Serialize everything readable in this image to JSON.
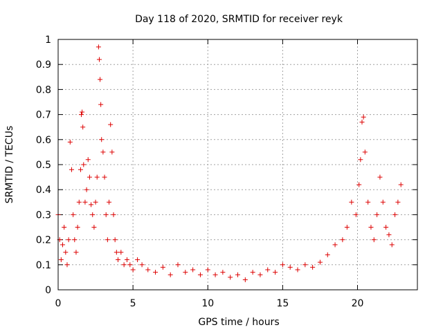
{
  "chart_data": {
    "type": "scatter",
    "title": "Day 118 of 2020, SRMTID for receiver reyk",
    "xlabel": "GPS time / hours",
    "ylabel": "SRMTID / TECUs",
    "xlim": [
      0,
      24
    ],
    "ylim": [
      0,
      1
    ],
    "x_ticks": [
      0,
      5,
      10,
      15,
      20
    ],
    "x_tick_labels": [
      "0",
      "5",
      "10",
      "15",
      "20"
    ],
    "y_ticks": [
      0,
      0.1,
      0.2,
      0.3,
      0.4,
      0.5,
      0.6,
      0.7,
      0.8,
      0.9,
      1
    ],
    "y_tick_labels": [
      "0",
      "0.1",
      "0.2",
      "0.3",
      "0.4",
      "0.5",
      "0.6",
      "0.7",
      "0.8",
      "0.9",
      "1"
    ],
    "grid": true,
    "marker": "+",
    "color": "#dd0000",
    "series": [
      {
        "name": "SRMTID",
        "x": [
          0.0,
          0.1,
          0.2,
          0.3,
          0.4,
          0.5,
          0.6,
          0.7,
          0.8,
          0.9,
          1.0,
          1.1,
          1.2,
          1.3,
          1.4,
          1.5,
          1.55,
          1.6,
          1.65,
          1.7,
          1.8,
          1.9,
          2.0,
          2.1,
          2.2,
          2.3,
          2.4,
          2.5,
          2.6,
          2.7,
          2.75,
          2.8,
          2.85,
          2.9,
          3.0,
          3.1,
          3.2,
          3.3,
          3.4,
          3.5,
          3.6,
          3.7,
          3.8,
          3.9,
          4.0,
          4.2,
          4.4,
          4.6,
          4.8,
          5.0,
          5.3,
          5.6,
          6.0,
          6.5,
          7.0,
          7.5,
          8.0,
          8.5,
          9.0,
          9.5,
          10.0,
          10.5,
          11.0,
          11.5,
          12.0,
          12.5,
          13.0,
          13.5,
          14.0,
          14.5,
          15.0,
          15.5,
          16.0,
          16.5,
          17.0,
          17.5,
          18.0,
          18.5,
          19.0,
          19.3,
          19.6,
          19.9,
          20.1,
          20.2,
          20.3,
          20.4,
          20.5,
          20.7,
          20.9,
          21.1,
          21.3,
          21.5,
          21.7,
          21.9,
          22.1,
          22.3,
          22.5,
          22.7,
          22.9
        ],
        "y": [
          0.3,
          0.2,
          0.12,
          0.18,
          0.25,
          0.15,
          0.1,
          0.2,
          0.59,
          0.48,
          0.3,
          0.2,
          0.15,
          0.25,
          0.35,
          0.48,
          0.7,
          0.71,
          0.65,
          0.5,
          0.35,
          0.4,
          0.52,
          0.45,
          0.34,
          0.3,
          0.25,
          0.35,
          0.45,
          0.97,
          0.92,
          0.84,
          0.74,
          0.6,
          0.55,
          0.45,
          0.3,
          0.2,
          0.35,
          0.66,
          0.55,
          0.3,
          0.2,
          0.15,
          0.12,
          0.15,
          0.1,
          0.12,
          0.1,
          0.08,
          0.12,
          0.1,
          0.08,
          0.07,
          0.09,
          0.06,
          0.1,
          0.07,
          0.08,
          0.06,
          0.08,
          0.06,
          0.07,
          0.05,
          0.06,
          0.04,
          0.07,
          0.06,
          0.08,
          0.07,
          0.1,
          0.09,
          0.08,
          0.1,
          0.09,
          0.11,
          0.14,
          0.18,
          0.2,
          0.25,
          0.35,
          0.3,
          0.42,
          0.52,
          0.67,
          0.69,
          0.55,
          0.35,
          0.25,
          0.2,
          0.3,
          0.45,
          0.35,
          0.25,
          0.22,
          0.18,
          0.3,
          0.35,
          0.42
        ]
      }
    ]
  }
}
